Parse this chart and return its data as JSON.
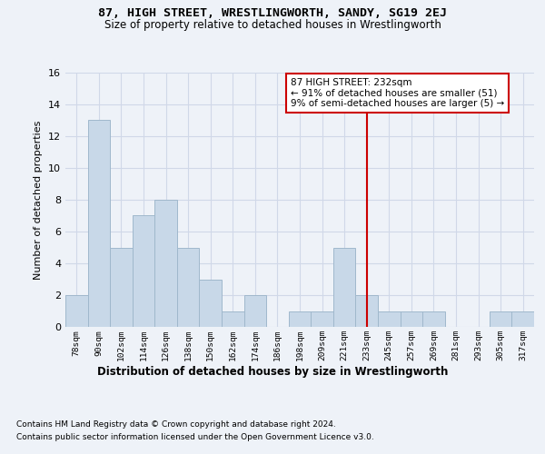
{
  "title1": "87, HIGH STREET, WRESTLINGWORTH, SANDY, SG19 2EJ",
  "title2": "Size of property relative to detached houses in Wrestlingworth",
  "xlabel": "Distribution of detached houses by size in Wrestlingworth",
  "ylabel": "Number of detached properties",
  "categories": [
    "78sqm",
    "90sqm",
    "102sqm",
    "114sqm",
    "126sqm",
    "138sqm",
    "150sqm",
    "162sqm",
    "174sqm",
    "186sqm",
    "198sqm",
    "209sqm",
    "221sqm",
    "233sqm",
    "245sqm",
    "257sqm",
    "269sqm",
    "281sqm",
    "293sqm",
    "305sqm",
    "317sqm"
  ],
  "values": [
    2,
    13,
    5,
    7,
    8,
    5,
    3,
    1,
    2,
    0,
    1,
    1,
    5,
    2,
    1,
    1,
    1,
    0,
    0,
    1,
    1
  ],
  "bar_color": "#c8d8e8",
  "bar_edgecolor": "#a0b8cc",
  "grid_color": "#d0d8e8",
  "vline_x": 13,
  "vline_color": "#cc0000",
  "annotation_text": "87 HIGH STREET: 232sqm\n← 91% of detached houses are smaller (51)\n9% of semi-detached houses are larger (5) →",
  "annotation_box_color": "#ffffff",
  "annotation_box_edgecolor": "#cc0000",
  "ylim": [
    0,
    16
  ],
  "yticks": [
    0,
    2,
    4,
    6,
    8,
    10,
    12,
    14,
    16
  ],
  "background_color": "#eef2f8",
  "footer1": "Contains HM Land Registry data © Crown copyright and database right 2024.",
  "footer2": "Contains public sector information licensed under the Open Government Licence v3.0."
}
